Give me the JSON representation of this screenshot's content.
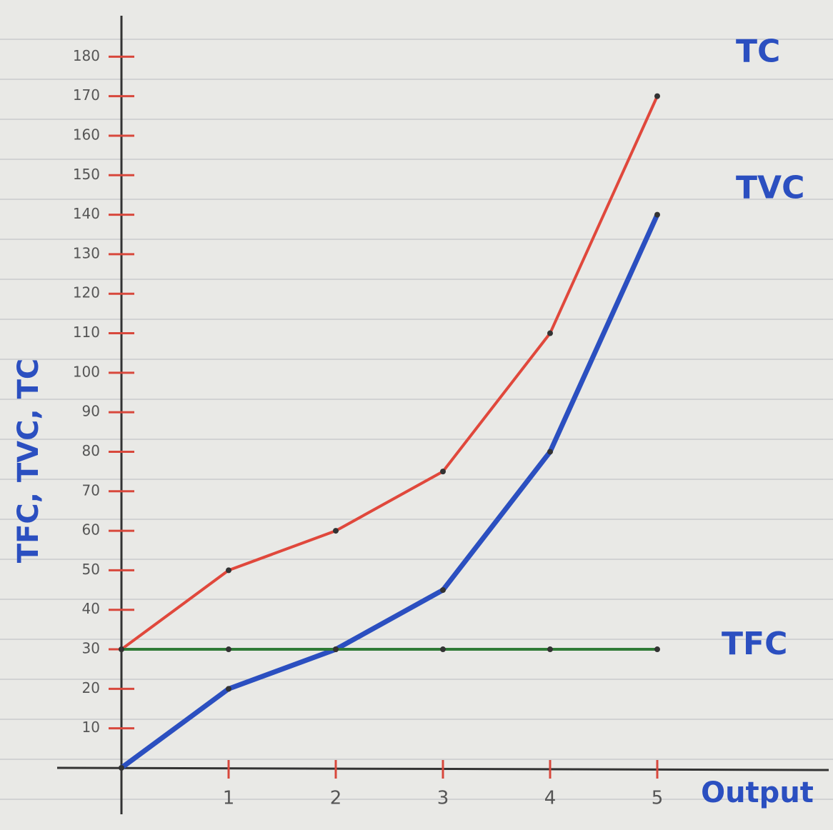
{
  "chart_data": {
    "type": "line",
    "x_label": "Output",
    "y_label": "TFC, TVC, TC",
    "x": [
      0,
      1,
      2,
      3,
      4,
      5
    ],
    "series": [
      {
        "name": "TC",
        "color": "#e0483c",
        "values": [
          30,
          50,
          60,
          75,
          110,
          170
        ]
      },
      {
        "name": "TVC",
        "color": "#2b4fc0",
        "values": [
          0,
          20,
          30,
          45,
          80,
          140
        ]
      },
      {
        "name": "TFC",
        "color": "#2f7a36",
        "values": [
          30,
          30,
          30,
          30,
          30,
          30
        ]
      }
    ],
    "xlim": [
      0,
      6.6
    ],
    "xticks": [
      1,
      2,
      3,
      4,
      5
    ],
    "ylim": [
      0,
      190
    ],
    "yticks": [
      10,
      20,
      30,
      40,
      50,
      60,
      70,
      80,
      90,
      100,
      110,
      120,
      130,
      140,
      150,
      160,
      170,
      180
    ]
  }
}
